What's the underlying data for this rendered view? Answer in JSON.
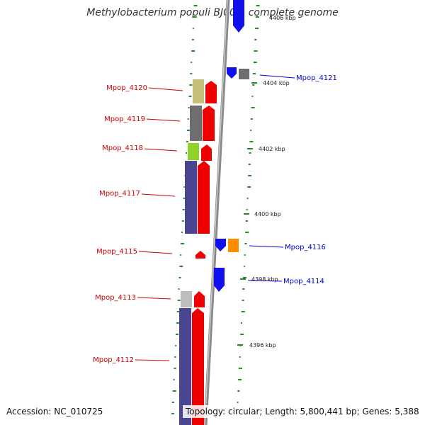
{
  "title": "Methylobacterium populi BJ001, complete genome",
  "accession": "Accession: NC_010725",
  "summary": "Topology: circular; Length: 5,800,441 bp; Genes: 5,388",
  "ticks": [
    {
      "label": "4406 kbp"
    },
    {
      "label": "4404 kbp"
    },
    {
      "label": "4402 kbp"
    },
    {
      "label": "4400 kbp"
    },
    {
      "label": "4398 kbp"
    },
    {
      "label": "4396 kbp"
    }
  ],
  "genes": [
    {
      "label": "Mpop_4120",
      "strand": "left",
      "color": "#cc0000",
      "feature_color": "#c8c07a"
    },
    {
      "label": "Mpop_4119",
      "strand": "left",
      "color": "#cc0000",
      "feature_color": "#6e6e6e"
    },
    {
      "label": "Mpop_4118",
      "strand": "left",
      "color": "#cc0000",
      "feature_color": "#8fd22a"
    },
    {
      "label": "Mpop_4117",
      "strand": "left",
      "color": "#cc0000",
      "feature_color": "#4a4590"
    },
    {
      "label": "Mpop_4115",
      "strand": "left",
      "color": "#cc0000",
      "feature_color": ""
    },
    {
      "label": "Mpop_4113",
      "strand": "left",
      "color": "#cc0000",
      "feature_color": "#bdbdbd"
    },
    {
      "label": "Mpop_4112",
      "strand": "left",
      "color": "#cc0000",
      "feature_color": "#4a4590"
    },
    {
      "label": "Mpop_4121",
      "strand": "right",
      "color": "#0000cc",
      "feature_color": "#6e6e6e"
    },
    {
      "label": "Mpop_4116",
      "strand": "right",
      "color": "#0000cc",
      "feature_color": "#ff8c00"
    },
    {
      "label": "Mpop_4114",
      "strand": "right",
      "color": "#0000cc",
      "feature_color": ""
    }
  ],
  "colors": {
    "forward_cds": "#ee0000",
    "reverse_cds": "#1010ee",
    "backbone": "#8a8a8a",
    "gc_ticks": "#2a8a2a"
  }
}
